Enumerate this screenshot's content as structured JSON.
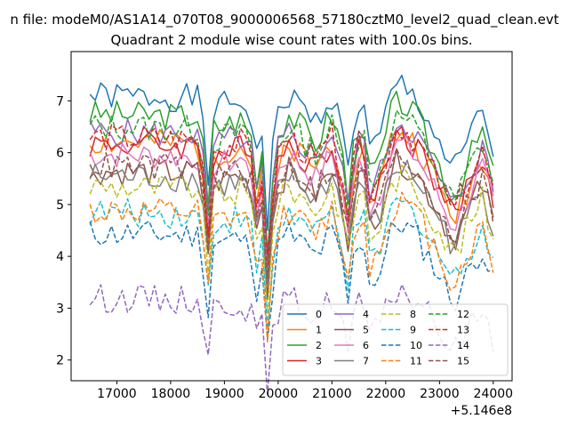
{
  "suptitle": "n file: modeM0/AS1A14_070T08_9000006568_57180cztM0_level2_quad_clean.evt",
  "chart_data": {
    "type": "line",
    "title": "Quadrant 2 module wise count rates with 100.0s bins.",
    "xlabel": "",
    "ylabel": "",
    "x_offset_label": "+5.146e8",
    "xlim": [
      16150,
      24350
    ],
    "ylim": [
      1.6,
      7.95
    ],
    "x_ticks": [
      17000,
      18000,
      19000,
      20000,
      21000,
      22000,
      23000,
      24000
    ],
    "y_ticks": [
      2,
      3,
      4,
      5,
      6,
      7
    ],
    "x": [
      16500,
      16600,
      16700,
      16800,
      16900,
      17000,
      17100,
      17200,
      17300,
      17400,
      17500,
      17600,
      17700,
      17800,
      17900,
      18000,
      18100,
      18200,
      18300,
      18400,
      18500,
      18600,
      18700,
      18800,
      18900,
      19000,
      19100,
      19200,
      19300,
      19400,
      19500,
      19600,
      19700,
      19800,
      19900,
      20000,
      20100,
      20200,
      20300,
      20400,
      20500,
      20600,
      20700,
      20800,
      20900,
      21000,
      21100,
      21200,
      21300,
      21400,
      21500,
      21600,
      21700,
      21800,
      21900,
      22000,
      22100,
      22200,
      22300,
      22400,
      22500,
      22600,
      22700,
      22800,
      22900,
      23000,
      23100,
      23200,
      23300,
      23400,
      23500,
      23600,
      23700,
      23800,
      23900,
      24000
    ],
    "anchors": [
      [
        16500,
        0.5
      ],
      [
        18550,
        0.45
      ],
      [
        18700,
        -1.2
      ],
      [
        18800,
        0.25
      ],
      [
        19300,
        0.4
      ],
      [
        19500,
        0.1
      ],
      [
        19550,
        -1.6
      ],
      [
        19650,
        0.2
      ],
      [
        19750,
        -0.6
      ],
      [
        19800,
        -2.0
      ],
      [
        19950,
        0.1
      ],
      [
        20200,
        0.5
      ],
      [
        20700,
        0.0
      ],
      [
        21000,
        0.5
      ],
      [
        21200,
        -0.2
      ],
      [
        21300,
        -1.0
      ],
      [
        21450,
        0.35
      ],
      [
        21600,
        0.3
      ],
      [
        21700,
        -0.6
      ],
      [
        21900,
        -0.3
      ],
      [
        22100,
        0.5
      ],
      [
        22250,
        0.75
      ],
      [
        22600,
        0.4
      ],
      [
        23000,
        -0.4
      ],
      [
        23250,
        -1.0
      ],
      [
        23350,
        -0.8
      ],
      [
        23600,
        -0.2
      ],
      [
        23800,
        0.2
      ],
      [
        24000,
        -0.6
      ]
    ],
    "legend": {
      "placement": "lower-right",
      "columns": 4
    },
    "series": [
      {
        "name": "0",
        "base": 6.6,
        "scale": 1.0,
        "color": "#1f77b4",
        "dash": false,
        "seed": 1
      },
      {
        "name": "1",
        "base": 5.7,
        "scale": 1.0,
        "color": "#ff7f0e",
        "dash": false,
        "seed": 2
      },
      {
        "name": "2",
        "base": 6.2,
        "scale": 1.1,
        "color": "#2ca02c",
        "dash": false,
        "seed": 3
      },
      {
        "name": "3",
        "base": 5.7,
        "scale": 0.95,
        "color": "#d62728",
        "dash": false,
        "seed": 4
      },
      {
        "name": "4",
        "base": 5.9,
        "scale": 1.0,
        "color": "#9467bd",
        "dash": false,
        "seed": 5
      },
      {
        "name": "5",
        "base": 5.2,
        "scale": 0.9,
        "color": "#8c564b",
        "dash": false,
        "seed": 6
      },
      {
        "name": "6",
        "base": 5.5,
        "scale": 0.95,
        "color": "#e377c2",
        "dash": false,
        "seed": 7
      },
      {
        "name": "7",
        "base": 5.1,
        "scale": 0.9,
        "color": "#7f7f7f",
        "dash": false,
        "seed": 8
      },
      {
        "name": "8",
        "base": 4.9,
        "scale": 0.9,
        "color": "#bcbd22",
        "dash": true,
        "seed": 9
      },
      {
        "name": "9",
        "base": 4.4,
        "scale": 0.9,
        "color": "#17becf",
        "dash": true,
        "seed": 10
      },
      {
        "name": "10",
        "base": 4.0,
        "scale": 0.9,
        "color": "#1f77b4",
        "dash": true,
        "seed": 11
      },
      {
        "name": "11",
        "base": 4.4,
        "scale": 0.95,
        "color": "#ff7f0e",
        "dash": true,
        "seed": 12
      },
      {
        "name": "12",
        "base": 6.0,
        "scale": 1.0,
        "color": "#2ca02c",
        "dash": true,
        "seed": 13
      },
      {
        "name": "13",
        "base": 5.8,
        "scale": 1.0,
        "color": "#d62728",
        "dash": true,
        "seed": 14
      },
      {
        "name": "14",
        "base": 2.85,
        "scale": 0.7,
        "color": "#9467bd",
        "dash": true,
        "seed": 15
      },
      {
        "name": "15",
        "base": 5.3,
        "scale": 0.9,
        "color": "#8c564b",
        "dash": true,
        "seed": 16
      }
    ]
  }
}
